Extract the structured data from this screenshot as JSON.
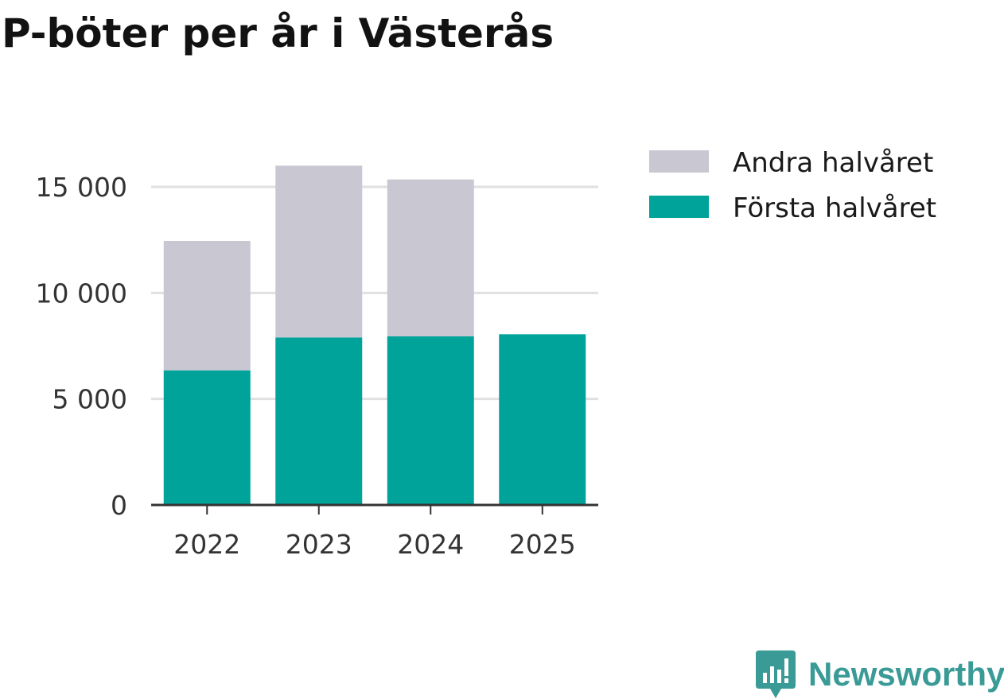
{
  "colors": {
    "first_half": "#00a39a",
    "second_half": "#c8c7d2",
    "grid": "#e0e0e0",
    "axis": "#333333",
    "brand": "#3a9b96"
  },
  "brand": {
    "name": "Newsworthy",
    "icon": "chart-bubble-icon"
  },
  "chart_data": {
    "type": "bar",
    "stacked": true,
    "title": "P-böter per år i Västerås",
    "xlabel": "",
    "ylabel": "",
    "categories": [
      "2022",
      "2023",
      "2024",
      "2025"
    ],
    "series": [
      {
        "name": "Första halvåret",
        "values": [
          6350,
          7900,
          7950,
          8050
        ]
      },
      {
        "name": "Andra halvåret",
        "values": [
          6100,
          8100,
          7400,
          0
        ]
      }
    ],
    "legend_order": [
      "Andra halvåret",
      "Första halvåret"
    ],
    "ylim": [
      0,
      16500
    ],
    "yticks": [
      0,
      5000,
      10000,
      15000
    ],
    "ytick_labels": [
      "0",
      "5 000",
      "10 000",
      "15 000"
    ],
    "grid": true,
    "legend_position": "right"
  }
}
